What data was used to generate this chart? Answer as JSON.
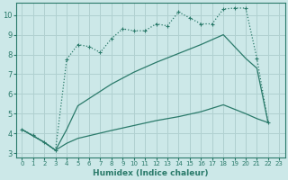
{
  "background_color": "#cce8e8",
  "grid_color": "#b0d0d0",
  "line_color": "#2a7a6a",
  "xlabel": "Humidex (Indice chaleur)",
  "ylim": [
    2.8,
    10.6
  ],
  "xlim": [
    -0.5,
    23.5
  ],
  "yticks": [
    3,
    4,
    5,
    6,
    7,
    8,
    9,
    10
  ],
  "xticks": [
    0,
    1,
    2,
    3,
    4,
    5,
    6,
    7,
    8,
    9,
    10,
    11,
    12,
    13,
    14,
    15,
    16,
    17,
    18,
    19,
    20,
    21,
    22,
    23
  ],
  "line1_x": [
    0,
    1,
    2,
    3,
    4,
    5,
    6,
    7,
    8,
    9,
    10,
    11,
    12,
    13,
    14,
    15,
    16,
    17,
    18,
    19,
    20,
    21,
    22
  ],
  "line1_y": [
    4.2,
    3.9,
    3.55,
    3.15,
    7.75,
    8.5,
    8.4,
    8.1,
    8.8,
    9.3,
    9.2,
    9.2,
    9.55,
    9.45,
    10.15,
    9.85,
    9.55,
    9.55,
    10.3,
    10.35,
    10.35,
    7.8,
    4.55
  ],
  "line2_x": [
    0,
    2,
    3,
    4,
    5,
    8,
    10,
    12,
    14,
    16,
    18,
    20,
    21,
    22
  ],
  "line2_y": [
    4.2,
    3.55,
    3.15,
    4.2,
    5.4,
    6.5,
    7.1,
    7.6,
    8.05,
    8.5,
    9.0,
    7.8,
    7.3,
    4.55
  ],
  "line3_x": [
    0,
    2,
    3,
    4,
    5,
    8,
    10,
    12,
    14,
    16,
    18,
    20,
    21,
    22
  ],
  "line3_y": [
    4.2,
    3.55,
    3.15,
    3.5,
    3.75,
    4.15,
    4.4,
    4.65,
    4.85,
    5.1,
    5.45,
    5.0,
    4.75,
    4.55
  ]
}
